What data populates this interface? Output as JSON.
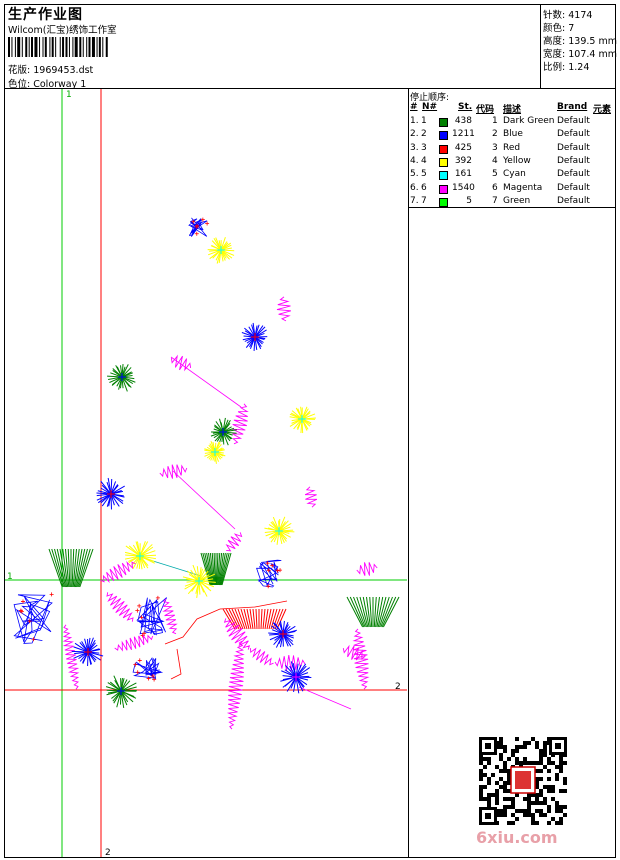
{
  "header": {
    "title": "生产作业图",
    "studio": "Wilcom(汇宝)绣饰工作室",
    "design_label": "花版:",
    "design_value": "1969453.dst",
    "colorway_label": "色位:",
    "colorway_value": "Colorway 1"
  },
  "stats": [
    {
      "label": "针数:",
      "value": "4174"
    },
    {
      "label": "颜色:",
      "value": "7"
    },
    {
      "label": "高度:",
      "value": "139.5 mm"
    },
    {
      "label": "宽度:",
      "value": "107.4 mm"
    },
    {
      "label": "比例:",
      "value": "1.24"
    }
  ],
  "stop_sequence": {
    "title": "停止顺序:",
    "headers": {
      "num": "#",
      "n": "N#",
      "st": "St.",
      "code": "代码",
      "desc": "描述",
      "brand": "Brand",
      "elem": "元素"
    },
    "rows": [
      {
        "num": "1.",
        "n": "1",
        "color": "#008000",
        "st": "438",
        "code": "1",
        "desc": "Dark Green",
        "brand": "Default"
      },
      {
        "num": "2.",
        "n": "2",
        "color": "#0000ff",
        "st": "1211",
        "code": "2",
        "desc": "Blue",
        "brand": "Default"
      },
      {
        "num": "3.",
        "n": "3",
        "color": "#ff0000",
        "st": "425",
        "code": "3",
        "desc": "Red",
        "brand": "Default"
      },
      {
        "num": "4.",
        "n": "4",
        "color": "#ffff00",
        "st": "392",
        "code": "4",
        "desc": "Yellow",
        "brand": "Default"
      },
      {
        "num": "5.",
        "n": "5",
        "color": "#00ffff",
        "st": "161",
        "code": "5",
        "desc": "Cyan",
        "brand": "Default"
      },
      {
        "num": "6.",
        "n": "6",
        "color": "#ff00ff",
        "st": "1540",
        "code": "6",
        "desc": "Magenta",
        "brand": "Default"
      },
      {
        "num": "7.",
        "n": "7",
        "color": "#00ff00",
        "st": "5",
        "code": "7",
        "desc": "Green",
        "brand": "Default"
      }
    ]
  },
  "guides": {
    "green_label_top": "1",
    "green_label_left": "1",
    "red_label_right": "2",
    "red_label_bottom": "2",
    "green_color": "#00cc00",
    "red_color": "#ff0000"
  },
  "watermark": "6xiu.com"
}
